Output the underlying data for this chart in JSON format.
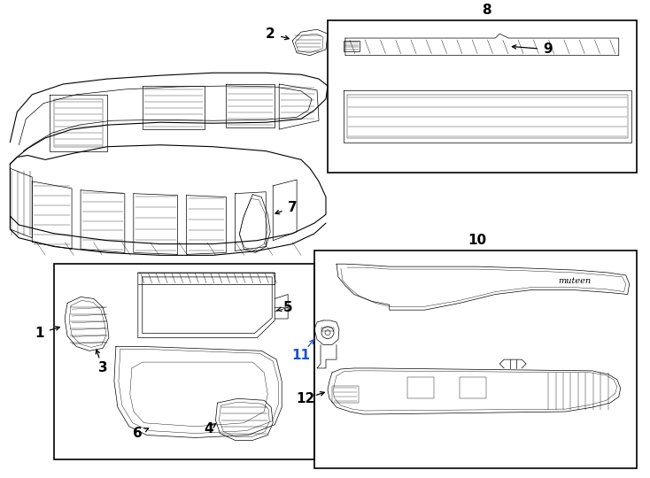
{
  "bg": "#ffffff",
  "lc": "#000000",
  "blue": "#1a4fd6",
  "fig_w": 7.34,
  "fig_h": 5.4,
  "dpi": 100
}
